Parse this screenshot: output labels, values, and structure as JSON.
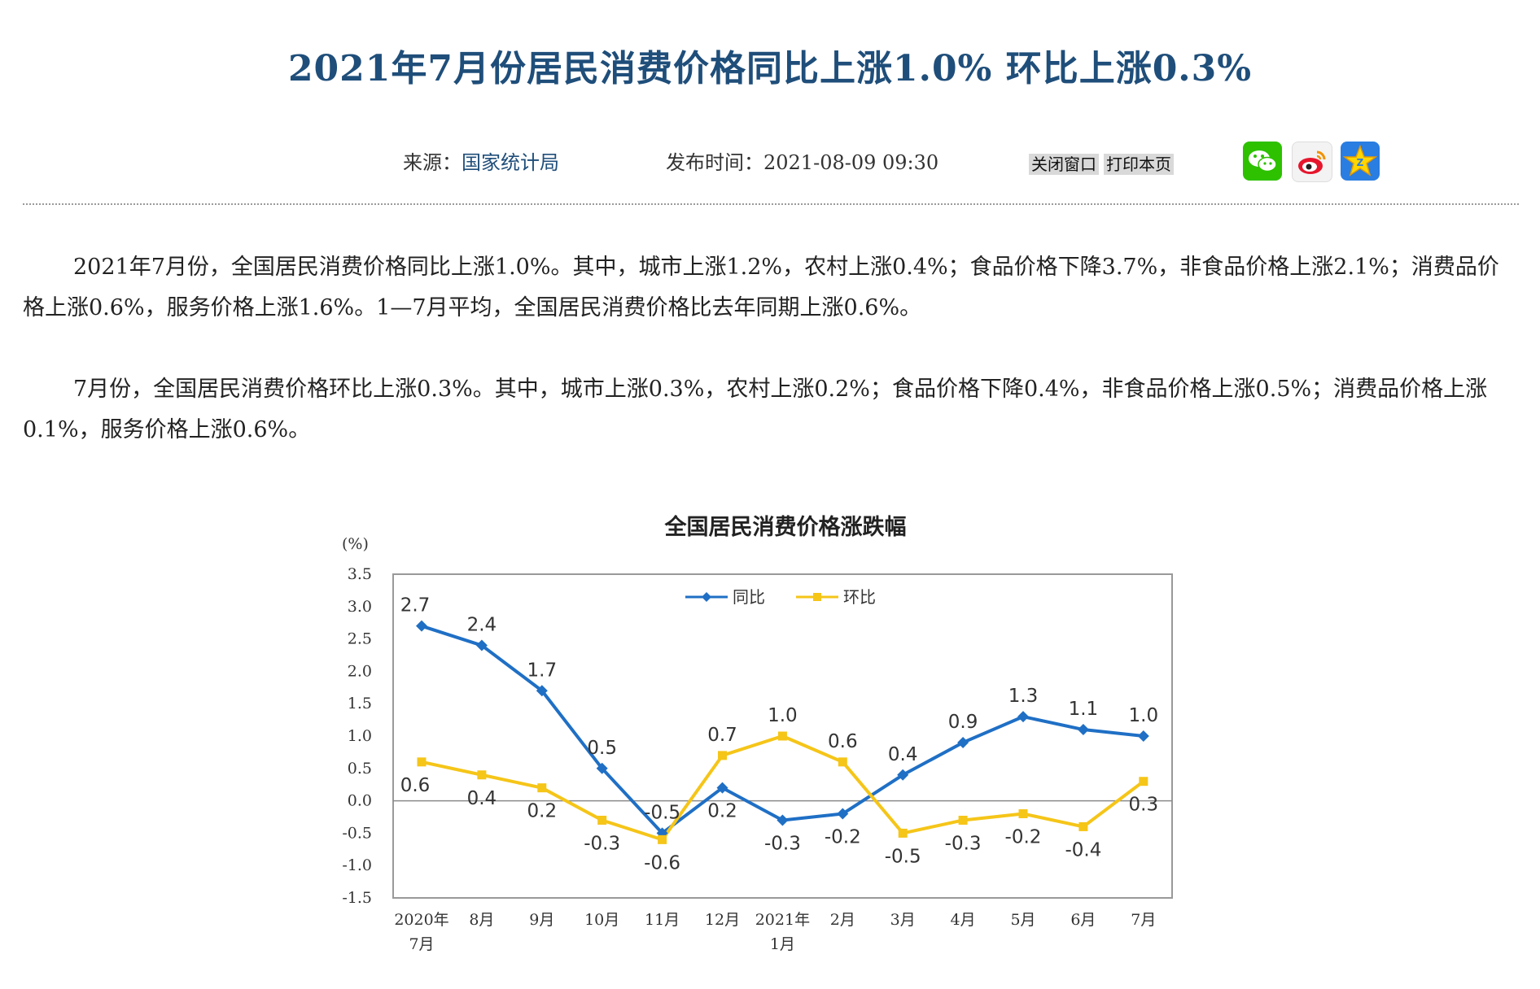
{
  "article": {
    "title": "2021年7月份居民消费价格同比上涨1.0% 环比上涨0.3%",
    "source_label": "来源：",
    "source": "国家统计局",
    "publish_label": "发布时间：",
    "publish_time": "2021-08-09 09:30",
    "close_window": "关闭窗口",
    "print_page": "打印本页",
    "share_icons": [
      "wechat-icon",
      "weibo-icon",
      "qzone-icon"
    ],
    "paragraph1": "2021年7月份，全国居民消费价格同比上涨1.0%。其中，城市上涨1.2%，农村上涨0.4%；食品价格下降3.7%，非食品价格上涨2.1%；消费品价格上涨0.6%，服务价格上涨1.6%。1—7月平均，全国居民消费价格比去年同期上涨0.6%。",
    "paragraph2": "7月份，全国居民消费价格环比上涨0.3%。其中，城市上涨0.3%，农村上涨0.2%；食品价格下降0.4%，非食品价格上涨0.5%；消费品价格上涨0.1%，服务价格上涨0.6%。"
  },
  "colors": {
    "title": "#1f4e7a",
    "yoy_series": "#1f6fc5",
    "mom_series": "#f5c518"
  },
  "chart_data": {
    "type": "line",
    "title": "全国居民消费价格涨跌幅",
    "ylabel": "(%)",
    "ylim": [
      -1.5,
      3.5
    ],
    "yticks": [
      "3.5",
      "3.0",
      "2.5",
      "2.0",
      "1.5",
      "1.0",
      "0.5",
      "0.0",
      "-0.5",
      "-1.0",
      "-1.5"
    ],
    "categories": [
      "2020年\n7月",
      "8月",
      "9月",
      "10月",
      "11月",
      "12月",
      "2021年\n1月",
      "2月",
      "3月",
      "4月",
      "5月",
      "6月",
      "7月"
    ],
    "legend_position": "top-center",
    "series": [
      {
        "name": "同比",
        "values": [
          2.7,
          2.4,
          1.7,
          0.5,
          -0.5,
          0.2,
          -0.3,
          -0.2,
          0.4,
          0.9,
          1.3,
          1.1,
          1.0
        ]
      },
      {
        "name": "环比",
        "values": [
          0.6,
          0.4,
          0.2,
          -0.3,
          -0.6,
          0.7,
          1.0,
          0.6,
          -0.5,
          -0.3,
          -0.2,
          -0.4,
          0.3
        ]
      }
    ]
  }
}
